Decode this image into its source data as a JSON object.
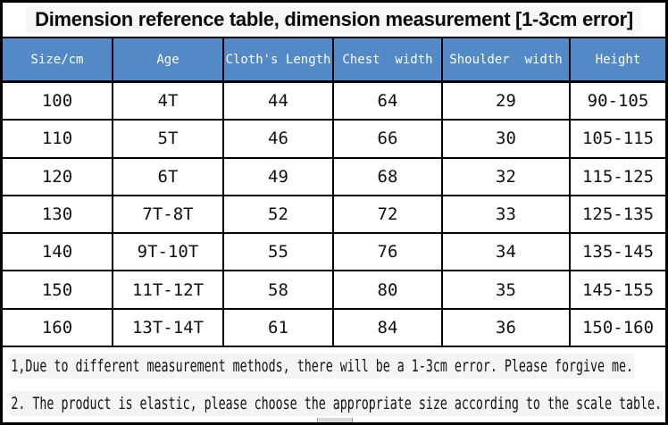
{
  "title": "Dimension reference table, dimension measurement [1-3cm error]",
  "table": {
    "columns": [
      "Size/cm",
      "Age",
      "Cloth's Length",
      "Chest  width",
      "Shoulder  width",
      "Height"
    ],
    "rows": [
      [
        "100",
        "4T",
        "44",
        "64",
        "29",
        "90-105"
      ],
      [
        "110",
        "5T",
        "46",
        "66",
        "30",
        "105-115"
      ],
      [
        "120",
        "6T",
        "49",
        "68",
        "32",
        "115-125"
      ],
      [
        "130",
        "7T-8T",
        "52",
        "72",
        "33",
        "125-135"
      ],
      [
        "140",
        "9T-10T",
        "55",
        "76",
        "34",
        "135-145"
      ],
      [
        "150",
        "11T-12T",
        "58",
        "80",
        "35",
        "145-155"
      ],
      [
        "160",
        "13T-14T",
        "61",
        "84",
        "36",
        "150-160"
      ]
    ]
  },
  "notes": [
    "1,Due to different measurement methods, there will be a 1-3cm error. Please forgive me.",
    "2. The product is elastic, please choose the appropriate size according to the scale table."
  ],
  "colors": {
    "header_bg": "#5489c7",
    "header_text": "#ffffff",
    "border": "#000000",
    "note_highlight": "#f4f4f4"
  }
}
